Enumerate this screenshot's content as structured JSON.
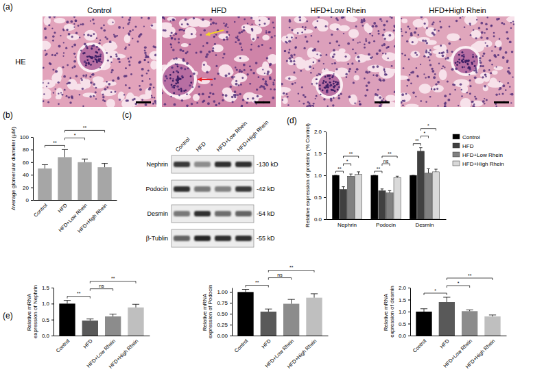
{
  "panels": {
    "a": {
      "letter": "(a)",
      "stain": "HE",
      "groups": [
        "Control",
        "HFD",
        "HFD+Low Rhein",
        "HFD+High Rhein"
      ]
    },
    "b": {
      "letter": "(b)"
    },
    "c": {
      "letter": "(c)",
      "lanes": [
        "Control",
        "HFD",
        "HFD+Low Rhein",
        "HFD+High Rhein"
      ],
      "rows": [
        {
          "protein": "Nephrin",
          "size": "-130 kD"
        },
        {
          "protein": "Podocin",
          "size": "-42 kD"
        },
        {
          "protein": "Desmin",
          "size": "-54 kD"
        },
        {
          "protein": "β-Tublin",
          "size": "-55 kD"
        }
      ]
    },
    "d": {
      "letter": "(d)"
    },
    "e": {
      "letter": "(e)"
    }
  },
  "chart_data": [
    {
      "type": "bar",
      "y_label": "Average glomerular diameter (μM)",
      "categories": [
        "Control",
        "HFD",
        "HFD+Low Rhein",
        "HFD+High Rhein"
      ],
      "values": [
        50,
        68,
        60,
        52
      ],
      "errors": [
        6,
        12,
        5,
        6
      ],
      "color": "#a6a6a6",
      "ylim": [
        0,
        100
      ],
      "yticks": [
        0,
        20,
        40,
        60,
        80,
        100
      ],
      "significance": [
        {
          "from": 0,
          "to": 1,
          "label": "**"
        },
        {
          "from": 1,
          "to": 2,
          "label": "*"
        },
        {
          "from": 1,
          "to": 3,
          "label": "**"
        }
      ]
    },
    {
      "type": "bar",
      "y_label": "Relative expression of proteins (% Control)",
      "categories": [
        "Nephrin",
        "Podocin",
        "Desmin"
      ],
      "series": [
        {
          "name": "Control",
          "color": "#000000",
          "values": [
            1.0,
            1.0,
            1.0
          ],
          "errors": [
            0,
            0,
            0
          ]
        },
        {
          "name": "HFD",
          "color": "#404040",
          "values": [
            0.68,
            0.65,
            1.55
          ],
          "errors": [
            0.06,
            0.04,
            0.08
          ]
        },
        {
          "name": "HFD+Low Rhein",
          "color": "#808080",
          "values": [
            0.98,
            0.6,
            1.05
          ],
          "errors": [
            0.05,
            0.05,
            0.1
          ]
        },
        {
          "name": "HFD+High Rhein",
          "color": "#d9d9d9",
          "values": [
            1.02,
            0.95,
            1.08
          ],
          "errors": [
            0.06,
            0.03,
            0.06
          ]
        }
      ],
      "ylim": [
        0,
        2
      ],
      "yticks": [
        {
          "value": 0,
          "label": "0.0"
        },
        0.5,
        {
          "value": 1,
          "label": "1.0"
        },
        1.5,
        {
          "value": 2,
          "label": "2.0"
        }
      ],
      "legend": "right",
      "significance": [
        {
          "category": 0,
          "from": 0,
          "to": 1,
          "label": "**"
        },
        {
          "category": 0,
          "from": 1,
          "to": 2,
          "label": "*"
        },
        {
          "category": 0,
          "from": 1,
          "to": 3,
          "label": "**"
        },
        {
          "category": 1,
          "from": 0,
          "to": 1,
          "label": "**"
        },
        {
          "category": 1,
          "from": 1,
          "to": 2,
          "label": "ns"
        },
        {
          "category": 1,
          "from": 1,
          "to": 3,
          "label": "**"
        },
        {
          "category": 2,
          "from": 0,
          "to": 1,
          "label": "**"
        },
        {
          "category": 2,
          "from": 1,
          "to": 2,
          "label": "*"
        },
        {
          "category": 2,
          "from": 1,
          "to": 3,
          "label": "*"
        }
      ]
    },
    {
      "type": "bar",
      "y_label": "Relative mRNA expression of Nephrin",
      "categories": [
        "Control",
        "HFD",
        "HFD+Low Rhein",
        "HFD+High Rhein"
      ],
      "values": [
        1.0,
        0.47,
        0.6,
        0.88
      ],
      "errors": [
        0.1,
        0.05,
        0.07,
        0.1
      ],
      "colors": [
        "#000000",
        "#595959",
        "#8c8c8c",
        "#bfbfbf"
      ],
      "ylim": [
        0,
        1.5
      ],
      "yticks": [
        {
          "value": 0,
          "label": "0.0"
        },
        0.5,
        {
          "value": 1,
          "label": "1.0"
        },
        1.5
      ],
      "significance": [
        {
          "from": 0,
          "to": 1,
          "label": "**"
        },
        {
          "from": 1,
          "to": 2,
          "label": "ns"
        },
        {
          "from": 1,
          "to": 3,
          "label": "**"
        }
      ]
    },
    {
      "type": "bar",
      "y_label": "Relative mRNA expression of Podocin",
      "categories": [
        "Control",
        "HFD",
        "HFD+Low Rhein",
        "HFD+High Rhein"
      ],
      "values": [
        1.0,
        0.55,
        0.73,
        0.87
      ],
      "errors": [
        0.06,
        0.06,
        0.1,
        0.09
      ],
      "colors": [
        "#000000",
        "#595959",
        "#8c8c8c",
        "#bfbfbf"
      ],
      "ylim": [
        0,
        1.1
      ],
      "yticks": [
        {
          "value": 0,
          "label": "0.00"
        },
        0.25,
        {
          "value": 0.5,
          "label": "0.50"
        },
        0.75,
        {
          "value": 1,
          "label": "1.00"
        }
      ],
      "significance": [
        {
          "from": 0,
          "to": 1,
          "label": "**"
        },
        {
          "from": 1,
          "to": 2,
          "label": "ns"
        },
        {
          "from": 1,
          "to": 3,
          "label": "**"
        }
      ]
    },
    {
      "type": "bar",
      "y_label": "Relative mRNA expression of desmin",
      "categories": [
        "Control",
        "HFD",
        "HFD+Low Rhein",
        "HFD+High Rhein"
      ],
      "values": [
        1.0,
        1.4,
        1.02,
        0.8
      ],
      "errors": [
        0.12,
        0.2,
        0.05,
        0.06
      ],
      "colors": [
        "#000000",
        "#595959",
        "#8c8c8c",
        "#bfbfbf"
      ],
      "ylim": [
        0,
        2
      ],
      "yticks": [
        {
          "value": 0,
          "label": "0.0"
        },
        0.5,
        {
          "value": 1,
          "label": "1.0"
        },
        1.5,
        {
          "value": 2,
          "label": "2.0"
        }
      ],
      "significance": [
        {
          "from": 0,
          "to": 1,
          "label": "*"
        },
        {
          "from": 1,
          "to": 2,
          "label": "*"
        },
        {
          "from": 1,
          "to": 3,
          "label": "**"
        }
      ]
    }
  ]
}
